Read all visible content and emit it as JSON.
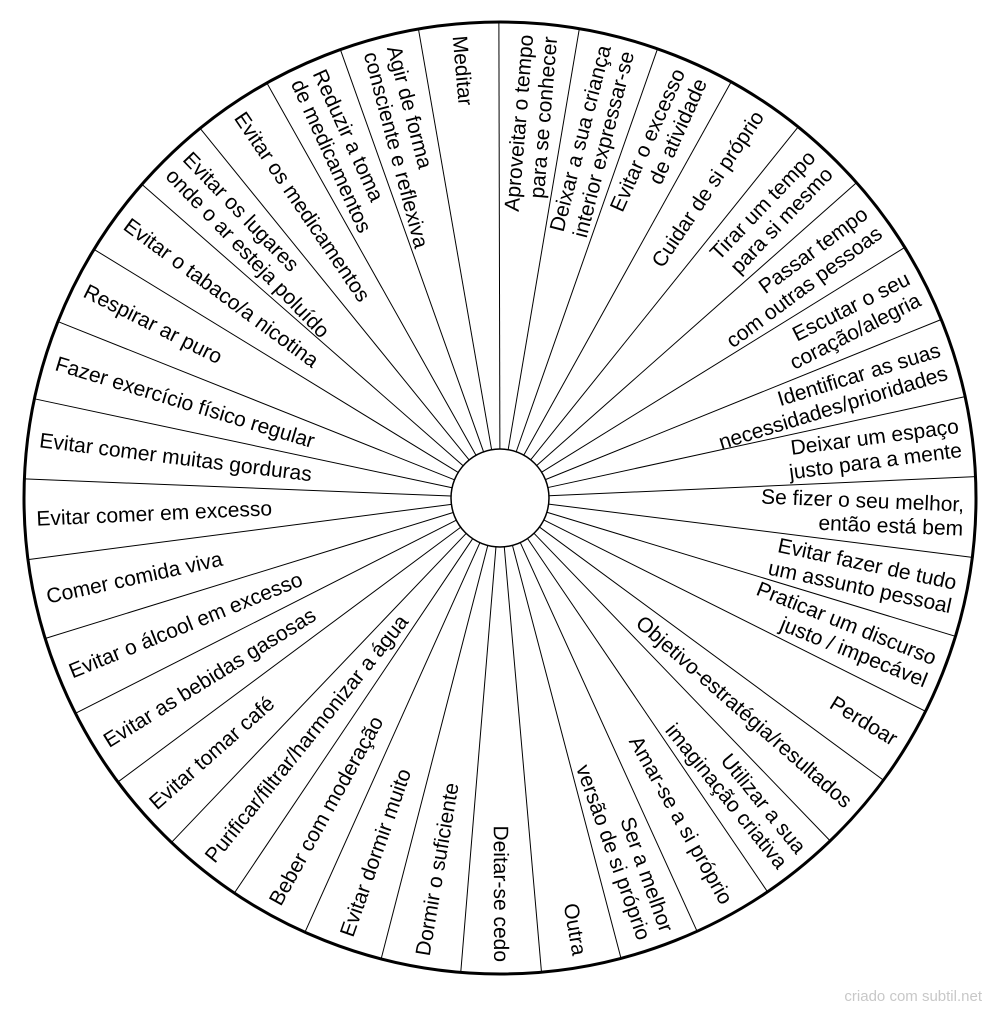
{
  "wheel": {
    "segments": [
      {
        "lines": [
          "Meditar"
        ]
      },
      {
        "lines": [
          "Aproveitar o tempo",
          "para se conhecer"
        ]
      },
      {
        "lines": [
          "Deixar a sua criança",
          "interior expressar-se"
        ]
      },
      {
        "lines": [
          "Evitar o excesso",
          "de atividade"
        ]
      },
      {
        "lines": [
          "Cuidar de si próprio"
        ]
      },
      {
        "lines": [
          "Tirar um tempo",
          "para si mesmo"
        ]
      },
      {
        "lines": [
          "Passar tempo",
          "com outras pessoas"
        ]
      },
      {
        "lines": [
          "Escutar o seu",
          "coração/alegria"
        ]
      },
      {
        "lines": [
          "Identificar as suas",
          "necessidades/prioridades"
        ]
      },
      {
        "lines": [
          "Deixar um espaço",
          "justo para a mente"
        ]
      },
      {
        "lines": [
          "Se fizer o seu melhor,",
          "então está bem"
        ]
      },
      {
        "lines": [
          "Evitar fazer de tudo",
          "um assunto pessoal"
        ]
      },
      {
        "lines": [
          "Praticar um discurso",
          "justo / impecável"
        ]
      },
      {
        "lines": [
          "Perdoar"
        ]
      },
      {
        "lines": [
          "Objetivo-estratégia/resultados"
        ]
      },
      {
        "lines": [
          "Utilizar a sua",
          "imaginação criativa"
        ]
      },
      {
        "lines": [
          "Amar-se a si próprio"
        ]
      },
      {
        "lines": [
          "Ser a melhor",
          "versão de si próprio"
        ]
      },
      {
        "lines": [
          "Outra"
        ]
      },
      {
        "lines": [
          "Deitar-se cedo"
        ]
      },
      {
        "lines": [
          "Dormir o suficiente"
        ]
      },
      {
        "lines": [
          "Evitar dormir muito"
        ]
      },
      {
        "lines": [
          "Beber com moderação"
        ]
      },
      {
        "lines": [
          "Purificar/filtrar/harmonizar a água"
        ]
      },
      {
        "lines": [
          "Evitar tomar café"
        ]
      },
      {
        "lines": [
          "Evitar as bebidas gasosas"
        ]
      },
      {
        "lines": [
          "Evitar o álcool em excesso"
        ]
      },
      {
        "lines": [
          "Comer comida viva"
        ]
      },
      {
        "lines": [
          "Evitar comer em excesso"
        ]
      },
      {
        "lines": [
          "Evitar comer muitas gorduras"
        ]
      },
      {
        "lines": [
          "Fazer exercício físico regular"
        ]
      },
      {
        "lines": [
          "Respirar ar puro"
        ]
      },
      {
        "lines": [
          "Evitar o tabaco/a nicotina"
        ]
      },
      {
        "lines": [
          "Evitar os lugares",
          "onde o ar esteja poluído"
        ]
      },
      {
        "lines": [
          "Evitar os medicamentos"
        ]
      },
      {
        "lines": [
          "Reduzir a toma",
          "de medicamentos"
        ]
      },
      {
        "lines": [
          "Agir de forma",
          "consciente e reflexiva"
        ]
      }
    ]
  },
  "footer": {
    "watermark": "criado com subtil.net"
  }
}
